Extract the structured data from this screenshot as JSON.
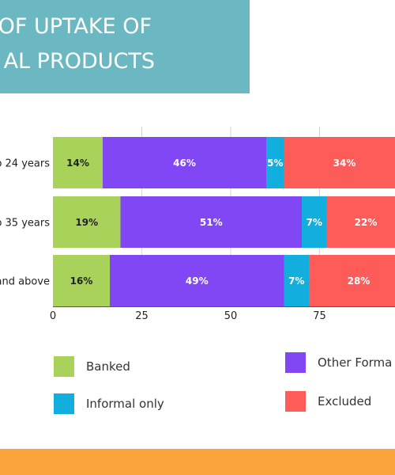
{
  "header": {
    "title_line1": "OF UPTAKE OF",
    "title_line2": "AL PRODUCTS",
    "background_color": "#6cb8c2"
  },
  "chart_data": {
    "type": "bar",
    "orientation": "horizontal",
    "stacked": true,
    "categories": [
      "o 24 years",
      "o 35 years",
      "and above"
    ],
    "series": [
      {
        "name": "Banked",
        "color": "#a8d25a",
        "values": [
          14,
          19,
          16
        ],
        "labels": [
          "14%",
          "19%",
          "16%"
        ]
      },
      {
        "name": "Other Forma",
        "color": "#8247f5",
        "values": [
          46,
          51,
          49
        ],
        "labels": [
          "46%",
          "51%",
          "49%"
        ]
      },
      {
        "name": "Informal only",
        "color": "#12aede",
        "values": [
          5,
          7,
          7
        ],
        "labels": [
          "5%",
          "7%",
          "7%"
        ]
      },
      {
        "name": "Excluded",
        "color": "#fd5c59",
        "values": [
          34,
          22,
          28
        ],
        "labels": [
          "34%",
          "22%",
          "28%"
        ]
      }
    ],
    "xticks": [
      0,
      25,
      50,
      75
    ],
    "xtick_labels": [
      "0",
      "25",
      "50",
      "75"
    ],
    "xlim": [
      0,
      100
    ],
    "grid": true,
    "legend_position": "bottom"
  },
  "legend": {
    "items": [
      {
        "label": "Banked",
        "color": "#a8d25a"
      },
      {
        "label": "Other Forma",
        "color": "#8247f5"
      },
      {
        "label": "Informal only",
        "color": "#12aede"
      },
      {
        "label": "Excluded",
        "color": "#fd5c59"
      }
    ]
  },
  "footer": {
    "color": "#fba43e"
  }
}
